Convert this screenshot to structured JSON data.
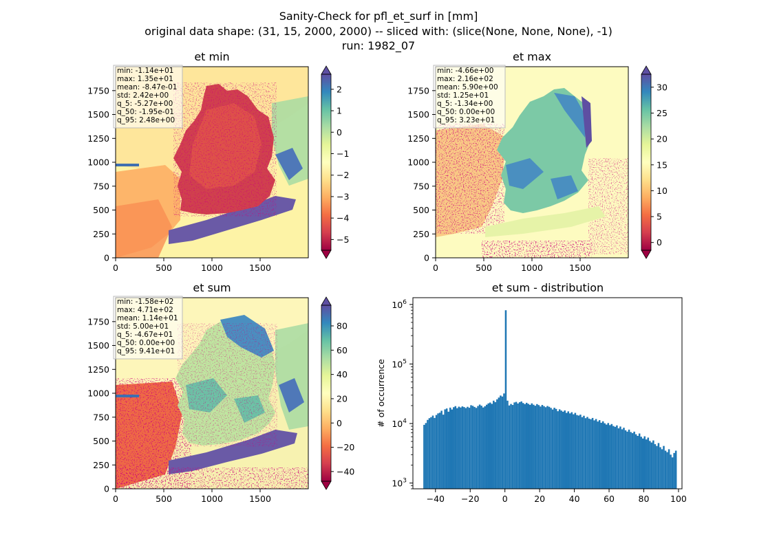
{
  "figure": {
    "suptitle": [
      "Sanity-Check for pfl_et_surf in [mm]",
      "original data shape: (31, 15, 2000, 2000) -- sliced with: (slice(None, None, None), -1)",
      "run: 1982_07"
    ]
  },
  "chart_data": [
    {
      "type": "heatmap",
      "title": "et min",
      "xticks": [
        "0",
        "500",
        "1000",
        "1500"
      ],
      "yticks": [
        "0",
        "250",
        "500",
        "750",
        "1000",
        "1250",
        "1500",
        "1750"
      ],
      "xlim": [
        0,
        2000
      ],
      "ylim": [
        0,
        2000
      ],
      "colormap": "Spectral",
      "colorbar": {
        "vmin": -5.5,
        "vmax": 2.7,
        "ticks": [
          "2",
          "1",
          "0",
          "−1",
          "−2",
          "−3",
          "−4",
          "−5"
        ],
        "tick_values": [
          2,
          1,
          0,
          -1,
          -2,
          -3,
          -4,
          -5
        ],
        "extend": "both"
      },
      "stats_box": [
        "min: -1.14e+01",
        "max: 1.35e+01",
        "mean: -8.47e-01",
        "std: 2.42e+00",
        "q_5: -5.27e+00",
        "q_50: -1.95e-01",
        "q_95: 2.48e+00"
      ]
    },
    {
      "type": "heatmap",
      "title": "et max",
      "xticks": [
        "0",
        "500",
        "1000",
        "1500"
      ],
      "yticks": [
        "0",
        "250",
        "500",
        "750",
        "1000",
        "1250",
        "1500",
        "1750"
      ],
      "xlim": [
        0,
        2000
      ],
      "ylim": [
        0,
        2000
      ],
      "colormap": "Spectral",
      "colorbar": {
        "vmin": -1.5,
        "vmax": 32.5,
        "ticks": [
          "30",
          "25",
          "20",
          "15",
          "10",
          "5",
          "0"
        ],
        "tick_values": [
          30,
          25,
          20,
          15,
          10,
          5,
          0
        ],
        "extend": "both"
      },
      "stats_box": [
        "min: -4.66e+00",
        "max: 2.16e+02",
        "mean: 5.90e+00",
        "std: 1.25e+01",
        "q_5: -1.34e+00",
        "q_50: 0.00e+00",
        "q_95: 3.23e+01"
      ]
    },
    {
      "type": "heatmap",
      "title": "et sum",
      "xticks": [
        "0",
        "500",
        "1000",
        "1500"
      ],
      "yticks": [
        "0",
        "250",
        "500",
        "750",
        "1000",
        "1250",
        "1500",
        "1750"
      ],
      "xlim": [
        0,
        2000
      ],
      "ylim": [
        0,
        2000
      ],
      "colormap": "Spectral",
      "colorbar": {
        "vmin": -48,
        "vmax": 97,
        "ticks": [
          "80",
          "60",
          "40",
          "20",
          "0",
          "−20",
          "−40"
        ],
        "tick_values": [
          80,
          60,
          40,
          20,
          0,
          -20,
          -40
        ],
        "extend": "both"
      },
      "stats_box": [
        "min: -1.58e+02",
        "max: 4.71e+02",
        "mean: 1.14e+01",
        "std: 5.00e+01",
        "q_5: -4.67e+01",
        "q_50: 0.00e+00",
        "q_95: 9.41e+01"
      ]
    },
    {
      "type": "bar",
      "title": "et sum - distribution",
      "ylabel": "# of occurrence",
      "xlabel": "",
      "yscale": "log",
      "xlim": [
        -53,
        102
      ],
      "ylim": [
        800,
        1300000
      ],
      "xticks": [
        "−40",
        "−20",
        "0",
        "20",
        "40",
        "60",
        "80",
        "100"
      ],
      "xtick_values": [
        -40,
        -20,
        0,
        20,
        40,
        60,
        80,
        100
      ],
      "ytick_values": [
        1000,
        10000,
        100000,
        1000000
      ],
      "ytick_exponents": [
        "3",
        "4",
        "5",
        "6"
      ],
      "bar_color": "#1f77b4",
      "bin_start": -47,
      "bin_width": 1,
      "values": [
        9500,
        10200,
        11500,
        12300,
        12800,
        13600,
        12400,
        13900,
        14800,
        15200,
        16400,
        14100,
        17300,
        17900,
        15800,
        18500,
        17200,
        18800,
        19600,
        18100,
        19200,
        18600,
        19400,
        18900,
        18200,
        19100,
        18400,
        20300,
        19800,
        19000,
        18300,
        19700,
        20800,
        19900,
        18600,
        19500,
        20700,
        21800,
        22500,
        21400,
        24200,
        22900,
        25500,
        27300,
        29500,
        28400,
        32000,
        800000,
        24200,
        20100,
        21300,
        20500,
        22600,
        23100,
        21700,
        22800,
        23500,
        22100,
        21200,
        22300,
        21400,
        20600,
        21800,
        20700,
        19900,
        21200,
        20400,
        19300,
        20500,
        19600,
        18800,
        19700,
        19100,
        18300,
        17200,
        18400,
        17600,
        16100,
        17300,
        16500,
        15800,
        16600,
        15100,
        16000,
        14800,
        15500,
        14300,
        15100,
        13900,
        13600,
        14100,
        12800,
        13500,
        12300,
        12900,
        12100,
        11800,
        12400,
        11300,
        11900,
        10800,
        11400,
        10300,
        10900,
        10100,
        9600,
        10200,
        9400,
        9800,
        9100,
        8800,
        9300,
        8300,
        8900,
        8000,
        8500,
        7700,
        7300,
        7900,
        7200,
        6900,
        7300,
        6600,
        6200,
        6800,
        6000,
        5600,
        6100,
        5400,
        5800,
        5100,
        4800,
        5200,
        4500,
        4200,
        4700,
        4000,
        3700,
        4200,
        3500,
        3300,
        3700,
        3000,
        2700,
        3200,
        3500
      ]
    }
  ]
}
